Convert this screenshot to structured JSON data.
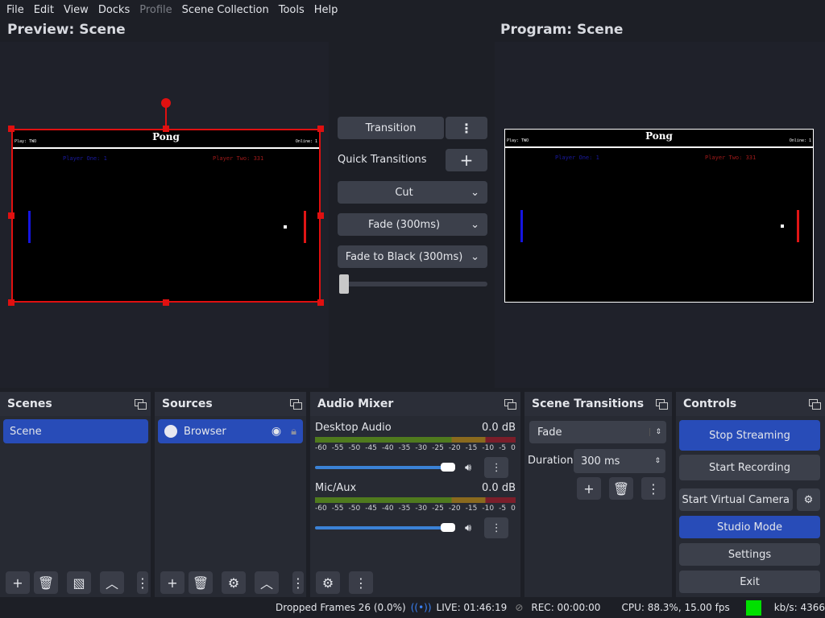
{
  "menu": [
    "File",
    "Edit",
    "View",
    "Docks",
    "Profile",
    "Scene Collection",
    "Tools",
    "Help"
  ],
  "preview": {
    "title": "Preview: Scene"
  },
  "program": {
    "title": "Program: Scene"
  },
  "pong": {
    "title": "Pong",
    "player_tag": "Play: TWO",
    "online": "Online: 1",
    "p1": "Player One: 1",
    "p2": "Player Two: 331"
  },
  "transitions_panel": {
    "transition": "Transition",
    "quick": "Quick Transitions",
    "cut": "Cut",
    "fade": "Fade (300ms)",
    "fade_black": "Fade to Black (300ms)"
  },
  "scenes": {
    "title": "Scenes",
    "items": [
      "Scene"
    ]
  },
  "sources": {
    "title": "Sources",
    "items": [
      "Browser"
    ]
  },
  "mixer": {
    "title": "Audio Mixer",
    "channels": [
      {
        "name": "Desktop Audio",
        "db": "0.0 dB"
      },
      {
        "name": "Mic/Aux",
        "db": "0.0 dB"
      }
    ],
    "ticks": [
      "-60",
      "-55",
      "-50",
      "-45",
      "-40",
      "-35",
      "-30",
      "-25",
      "-20",
      "-15",
      "-10",
      "-5",
      "0"
    ],
    "volume": 1.0
  },
  "scene_transitions": {
    "title": "Scene Transitions",
    "selected": "Fade",
    "duration_label": "Duration",
    "duration": "300 ms"
  },
  "controls": {
    "title": "Controls",
    "stop_streaming": "Stop Streaming",
    "start_recording": "Start Recording",
    "virtual_camera": "Start Virtual Camera",
    "studio_mode": "Studio Mode",
    "settings": "Settings",
    "exit": "Exit"
  },
  "status": {
    "dropped": "Dropped Frames 26 (0.0%)",
    "live": "LIVE: 01:46:19",
    "rec": "REC: 00:00:00",
    "cpu": "CPU: 88.3%, 15.00 fps",
    "kbs": "kb/s: 4366",
    "health_color": "#00e000"
  },
  "colors": {
    "accent": "#284cb8",
    "selection": "#e01010"
  }
}
